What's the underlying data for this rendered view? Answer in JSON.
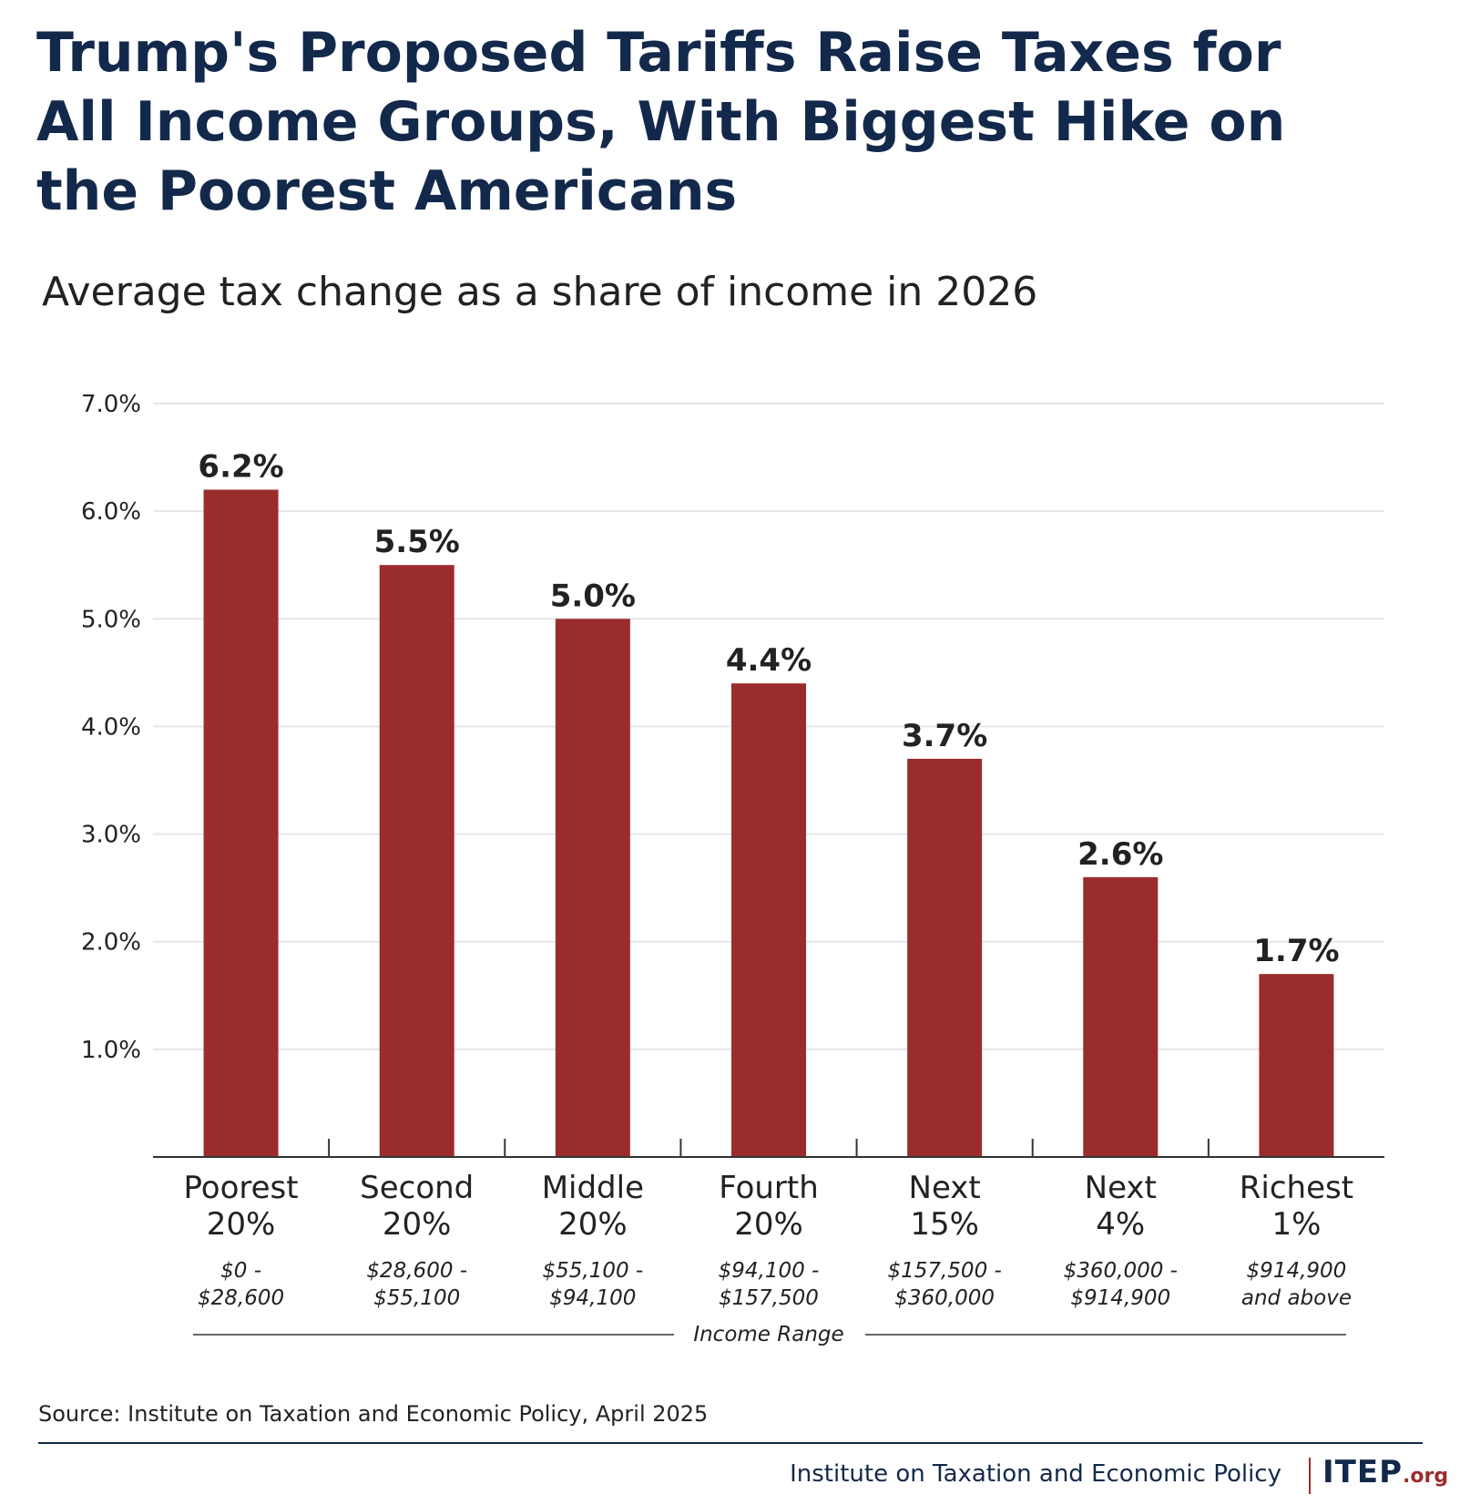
{
  "header": {
    "title_lines": [
      "Trump's Proposed Tariffs Raise Taxes for",
      "All Income Groups, With Biggest Hike on",
      "the Poorest Americans"
    ],
    "subtitle": "Average tax change as a share of income in 2026"
  },
  "chart_data": {
    "type": "bar",
    "title": "Trump's Proposed Tariffs Raise Taxes for All Income Groups, With Biggest Hike on the Poorest Americans",
    "subtitle": "Average tax change as a share of income in 2026",
    "xlabel": "Income Range",
    "ylabel": "",
    "ylim": [
      0,
      7
    ],
    "yticks": [
      1,
      2,
      3,
      4,
      5,
      6,
      7
    ],
    "ytick_labels": [
      "1.0%",
      "2.0%",
      "3.0%",
      "4.0%",
      "5.0%",
      "6.0%",
      "7.0%"
    ],
    "grid": true,
    "categories": [
      {
        "line1": "Poorest",
        "line2": "20%",
        "range1": "$0 -",
        "range2": "$28,600"
      },
      {
        "line1": "Second",
        "line2": "20%",
        "range1": "$28,600 -",
        "range2": "$55,100"
      },
      {
        "line1": "Middle",
        "line2": "20%",
        "range1": "$55,100 -",
        "range2": "$94,100"
      },
      {
        "line1": "Fourth",
        "line2": "20%",
        "range1": "$94,100 -",
        "range2": "$157,500"
      },
      {
        "line1": "Next",
        "line2": "15%",
        "range1": "$157,500 -",
        "range2": "$360,000"
      },
      {
        "line1": "Next",
        "line2": "4%",
        "range1": "$360,000 -",
        "range2": "$914,900"
      },
      {
        "line1": "Richest",
        "line2": "1%",
        "range1": "$914,900",
        "range2": "and above"
      }
    ],
    "values": [
      6.2,
      5.5,
      5.0,
      4.4,
      3.7,
      2.6,
      1.7
    ],
    "value_labels": [
      "6.2%",
      "5.5%",
      "5.0%",
      "4.4%",
      "3.7%",
      "2.6%",
      "1.7%"
    ],
    "bar_color": "#9b2c2c"
  },
  "footer": {
    "source": "Source: Institute on Taxation and Economic Policy, April 2025",
    "org": "Institute on Taxation and Economic Policy",
    "logo_main": "ITEP",
    "logo_suffix": ".org"
  },
  "colors": {
    "title": "#13294b",
    "bar": "#9b2c2c",
    "grid": "#e6e6e6",
    "axis": "#333333"
  }
}
